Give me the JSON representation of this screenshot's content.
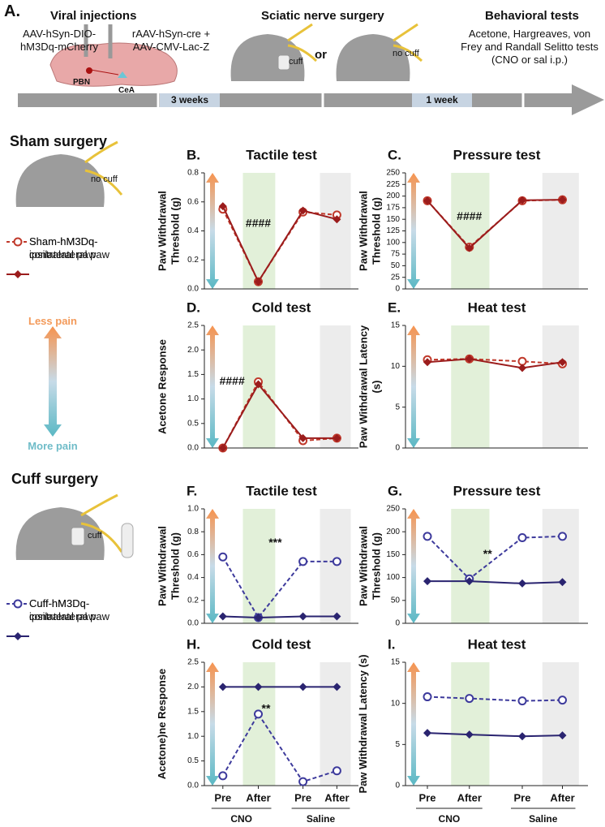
{
  "header": {
    "panel": "A.",
    "viral_injections": "Viral injections",
    "virus1": "AAV-hSyn-DIO-hM3Dq-mCherry",
    "virus2": "rAAV-hSyn-cre + AAV-CMV-Lac-Z",
    "pbn": "PBN",
    "cea": "CeA",
    "surgery": "Sciatic nerve surgery",
    "cuff": "cuff",
    "or": "or",
    "no_cuff": "no cuff",
    "behavior": "Behavioral tests",
    "tests": "Acetone, Hargreaves, von Frey and Randall Selitto tests (CNO or sal i.p.)",
    "weeks3": "3 weeks",
    "week1": "1 week"
  },
  "sham": {
    "title": "Sham surgery",
    "no_cuff": "no cuff",
    "legend": [
      {
        "name": "Sham-hM3Dq-contralateral paw",
        "color": "#c0392b",
        "dashed": true,
        "marker": "circle"
      },
      {
        "name": "Sham-hM3Dq-ipsilateral paw",
        "color": "#9b1c1c",
        "dashed": false,
        "marker": "diamond"
      }
    ]
  },
  "pain": {
    "less": "Less pain",
    "more": "More pain"
  },
  "cuff": {
    "title": "Cuff surgery",
    "cuff": "cuff",
    "legend": [
      {
        "name": "Cuff-hM3Dq-contralateral paw",
        "color": "#3d3a9c",
        "dashed": true,
        "marker": "circle"
      },
      {
        "name": "Cuff-hM3Dq-ipsilateral paw",
        "color": "#2a2470",
        "dashed": false,
        "marker": "diamond"
      }
    ]
  },
  "chart_data": [
    {
      "type": "line",
      "panel": "B.",
      "title": "Tactile test",
      "y_label": "Paw Withdrawal Threshold (g)",
      "ylim": [
        0,
        0.8
      ],
      "yticks": [
        {
          "value": 0,
          "label": "0.0"
        },
        0.2,
        0.4,
        0.6,
        0.8
      ],
      "annotation": "####",
      "series": [
        {
          "color": "#c0392b",
          "dashed": true,
          "marker": "circle",
          "values": [
            0.55,
            0.05,
            0.53,
            0.51
          ]
        },
        {
          "color": "#9b1c1c",
          "dashed": false,
          "marker": "diamond",
          "values": [
            0.57,
            0.05,
            0.54,
            0.48
          ]
        }
      ]
    },
    {
      "type": "line",
      "panel": "C.",
      "title": "Pressure test",
      "y_label": "Paw Withdrawal Threshold (g)",
      "ylim": [
        0,
        250
      ],
      "yticks": [
        0,
        25,
        50,
        75,
        100,
        125,
        150,
        175,
        200,
        225,
        250
      ],
      "annotation": "####",
      "series": [
        {
          "color": "#c0392b",
          "dashed": true,
          "marker": "circle",
          "values": [
            190,
            90,
            190,
            192
          ]
        },
        {
          "color": "#9b1c1c",
          "dashed": false,
          "marker": "diamond",
          "values": [
            190,
            88,
            191,
            192
          ]
        }
      ]
    },
    {
      "type": "line",
      "panel": "D.",
      "title": "Cold test",
      "y_label": "Acetone Response",
      "ylim": [
        0,
        2.5
      ],
      "yticks": [
        {
          "value": 0,
          "label": "0.0"
        },
        0.5,
        {
          "value": 1,
          "label": "1.0"
        },
        1.5,
        {
          "value": 2,
          "label": "2.0"
        },
        2.5
      ],
      "annotation": "####",
      "series": [
        {
          "color": "#c0392b",
          "dashed": true,
          "marker": "circle",
          "values": [
            0,
            1.35,
            0.15,
            0.2
          ]
        },
        {
          "color": "#9b1c1c",
          "dashed": false,
          "marker": "diamond",
          "values": [
            0,
            1.3,
            0.2,
            0.2
          ]
        }
      ]
    },
    {
      "type": "line",
      "panel": "E.",
      "title": "Heat test",
      "y_label": "Paw Withdrawal Latency (s)",
      "ylim": [
        0,
        15
      ],
      "yticks": [
        0,
        5,
        10,
        15
      ],
      "series": [
        {
          "color": "#c0392b",
          "dashed": true,
          "marker": "circle",
          "values": [
            10.8,
            10.9,
            10.6,
            10.3
          ]
        },
        {
          "color": "#9b1c1c",
          "dashed": false,
          "marker": "diamond",
          "values": [
            10.5,
            10.9,
            9.8,
            10.5
          ]
        }
      ]
    },
    {
      "type": "line",
      "panel": "F.",
      "title": "Tactile test",
      "y_label": "Paw Withdrawal Threshold (g)",
      "ylim": [
        0,
        1
      ],
      "yticks": [
        {
          "value": 0,
          "label": "0.0"
        },
        0.2,
        0.4,
        0.6,
        0.8,
        {
          "value": 1,
          "label": "1.0"
        }
      ],
      "annotation": "***",
      "series": [
        {
          "color": "#3d3a9c",
          "dashed": true,
          "marker": "circle",
          "values": [
            0.58,
            0.05,
            0.54,
            0.54
          ]
        },
        {
          "color": "#2a2470",
          "dashed": false,
          "marker": "diamond",
          "values": [
            0.06,
            0.05,
            0.06,
            0.06
          ]
        }
      ]
    },
    {
      "type": "line",
      "panel": "G.",
      "title": "Pressure test",
      "y_label": "Paw Withdrawal Threshold (g)",
      "ylim": [
        0,
        250
      ],
      "yticks": [
        0,
        50,
        100,
        150,
        200,
        250
      ],
      "annotation": "**",
      "series": [
        {
          "color": "#3d3a9c",
          "dashed": true,
          "marker": "circle",
          "values": [
            190,
            97,
            187,
            190
          ]
        },
        {
          "color": "#2a2470",
          "dashed": false,
          "marker": "diamond",
          "values": [
            92,
            92,
            87,
            90
          ]
        }
      ]
    },
    {
      "type": "line",
      "panel": "H.",
      "title": "Cold test",
      "y_label": "Acetone)ne Response",
      "ylim": [
        0,
        2.5
      ],
      "yticks": [
        {
          "value": 0,
          "label": "0.0"
        },
        0.5,
        {
          "value": 1,
          "label": "1.0"
        },
        1.5,
        {
          "value": 2,
          "label": "2.0"
        },
        2.5
      ],
      "annotation": "**",
      "categories": [
        "Pre",
        "After",
        "Pre",
        "After"
      ],
      "groups": [
        "CNO",
        "Saline"
      ],
      "series": [
        {
          "color": "#3d3a9c",
          "dashed": true,
          "marker": "circle",
          "values": [
            0.2,
            1.45,
            0.08,
            0.3
          ]
        },
        {
          "color": "#2a2470",
          "dashed": false,
          "marker": "diamond",
          "values": [
            2,
            2,
            2,
            2
          ]
        }
      ]
    },
    {
      "type": "line",
      "panel": "I.",
      "title": "Heat test",
      "y_label": "Paw Withdrawal Latency (s)",
      "ylim": [
        0,
        15
      ],
      "yticks": [
        0,
        5,
        10,
        15
      ],
      "categories": [
        "Pre",
        "After",
        "Pre",
        "After"
      ],
      "groups": [
        "CNO",
        "Saline"
      ],
      "series": [
        {
          "color": "#3d3a9c",
          "dashed": true,
          "marker": "circle",
          "values": [
            10.8,
            10.6,
            10.3,
            10.4
          ]
        },
        {
          "color": "#2a2470",
          "dashed": false,
          "marker": "diamond",
          "values": [
            6.4,
            6.2,
            6.0,
            6.1
          ]
        }
      ]
    }
  ]
}
